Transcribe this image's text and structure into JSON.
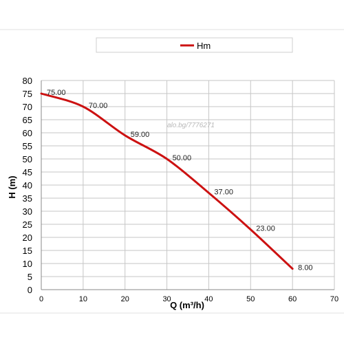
{
  "chart_data": {
    "type": "line",
    "xlabel": "Q (m³/h)",
    "ylabel": "H (m)",
    "xlim": [
      0,
      70
    ],
    "ylim": [
      0,
      80
    ],
    "xticks": [
      0,
      10,
      20,
      30,
      40,
      50,
      60,
      70
    ],
    "yticks": [
      0,
      5,
      10,
      15,
      20,
      25,
      30,
      35,
      40,
      45,
      50,
      55,
      60,
      65,
      70,
      75,
      80
    ],
    "grid": true,
    "legend_position": "top",
    "watermark": "alo.bg/7776271",
    "series": [
      {
        "name": "Hm",
        "color": "#cc1111",
        "points": [
          {
            "x": 0,
            "y": 75,
            "label": "75.00"
          },
          {
            "x": 10,
            "y": 70,
            "label": "70.00"
          },
          {
            "x": 20,
            "y": 59,
            "label": "59.00"
          },
          {
            "x": 30,
            "y": 50,
            "label": "50.00"
          },
          {
            "x": 40,
            "y": 37,
            "label": "37.00"
          },
          {
            "x": 50,
            "y": 23,
            "label": "23.00"
          },
          {
            "x": 60,
            "y": 8,
            "label": "8.00"
          }
        ]
      }
    ]
  }
}
